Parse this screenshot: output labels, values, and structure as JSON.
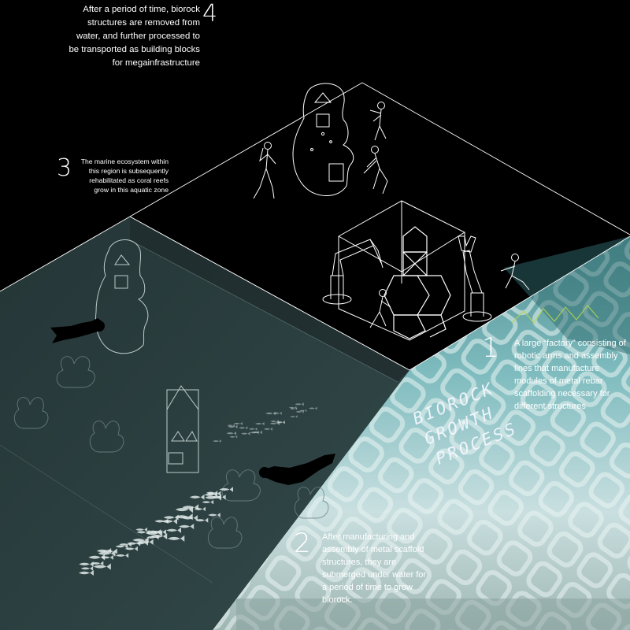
{
  "title": {
    "lines": [
      "BIOROCK",
      "GROWTH",
      "PROCESS"
    ]
  },
  "steps": [
    {
      "number": "1",
      "text": "A large “factory” consisting of robotic arms and assembly lines that manufacture modules of metal rebar scaffolding necessary for different structures"
    },
    {
      "number": "2",
      "text": "After manufacturing and assembly of metal scaffold structures, they are submerged under water for a period of time to grow biorock."
    },
    {
      "number": "3",
      "text": "The marine ecosystem within this region is subsequently rehabilitated as coral reefs grow in this aquatic zone"
    },
    {
      "number": "4",
      "text": "After a period of time, biorock structures are removed from water, and further processed to be transported as building blocks for megainfrastructure"
    }
  ],
  "colors": {
    "background": "#000000",
    "water_panel": "#2b3f40",
    "sea_photo": "#8fc9c9",
    "line_art": "#ffffff"
  },
  "icons": [
    "diver-icon",
    "fish-school-icon",
    "coral-icon",
    "robot-arm-icon",
    "worker-icon",
    "scaffold-module-icon",
    "biorock-block-icon"
  ]
}
